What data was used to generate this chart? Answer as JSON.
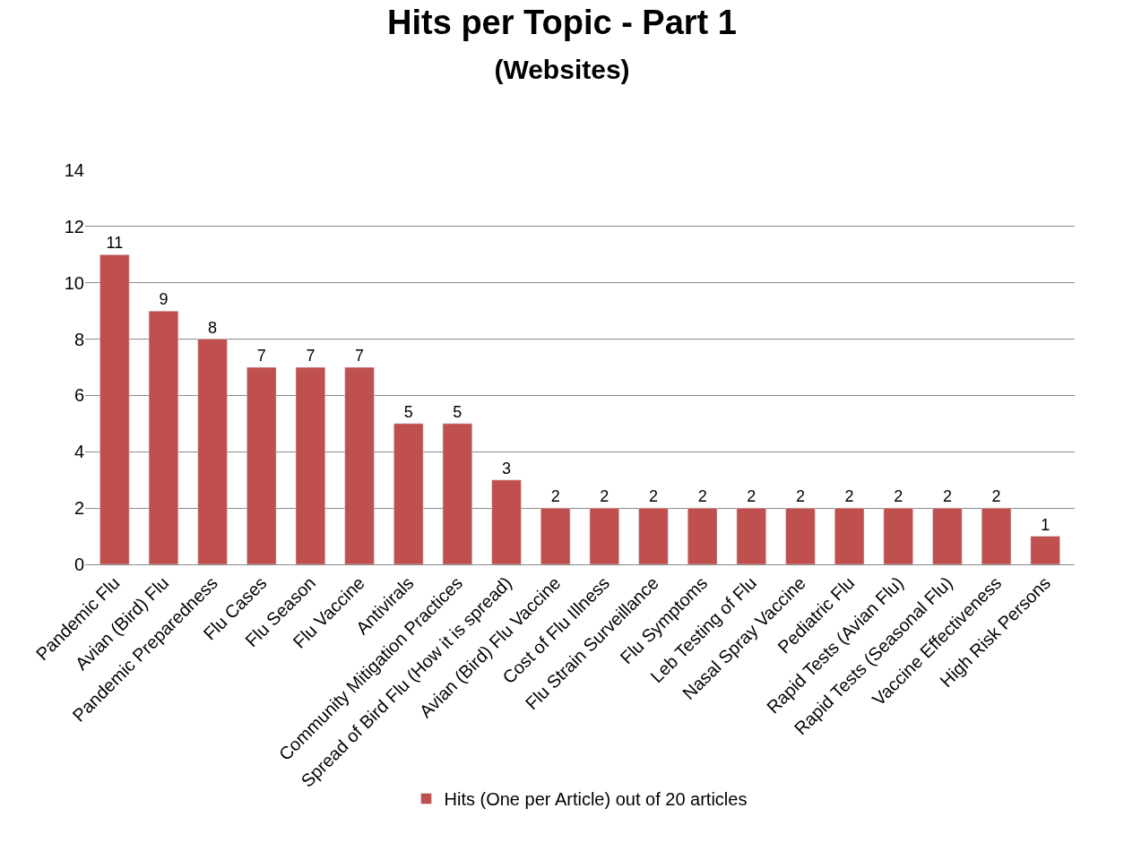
{
  "chart_data": {
    "type": "bar",
    "title": "Hits per Topic - Part 1",
    "subtitle": "(Websites)",
    "categories": [
      "Pandemic Flu",
      "Avian (Bird) Flu",
      "Pandemic Preparedness",
      "Flu Cases",
      "Flu Season",
      "Flu Vaccine",
      "Antivirals",
      "Community Mitigation Practices",
      "Spread of Bird Flu (How it is spread)",
      "Avian (Bird) Flu Vaccine",
      "Cost of Flu Illness",
      "Flu Strain Surveillance",
      "Flu Symptoms",
      "Leb Testing of Flu",
      "Nasal Spray Vaccine",
      "Pediatric Flu",
      "Rapid Tests (Avian Flu)",
      "Rapid Tests (Seasonal Flu)",
      "Vaccine Effectiveness",
      "High Risk Persons"
    ],
    "series": [
      {
        "name": "Hits (One per Article) out of 20 articles",
        "color": "#c0504d",
        "values": [
          11,
          9,
          8,
          7,
          7,
          7,
          5,
          5,
          3,
          2,
          2,
          2,
          2,
          2,
          2,
          2,
          2,
          2,
          2,
          1
        ]
      }
    ],
    "ylim": [
      0,
      14
    ],
    "yticks": [
      0,
      2,
      4,
      6,
      8,
      10,
      12,
      14
    ],
    "grid": "y",
    "legend": "bottom",
    "data_labels": true
  }
}
